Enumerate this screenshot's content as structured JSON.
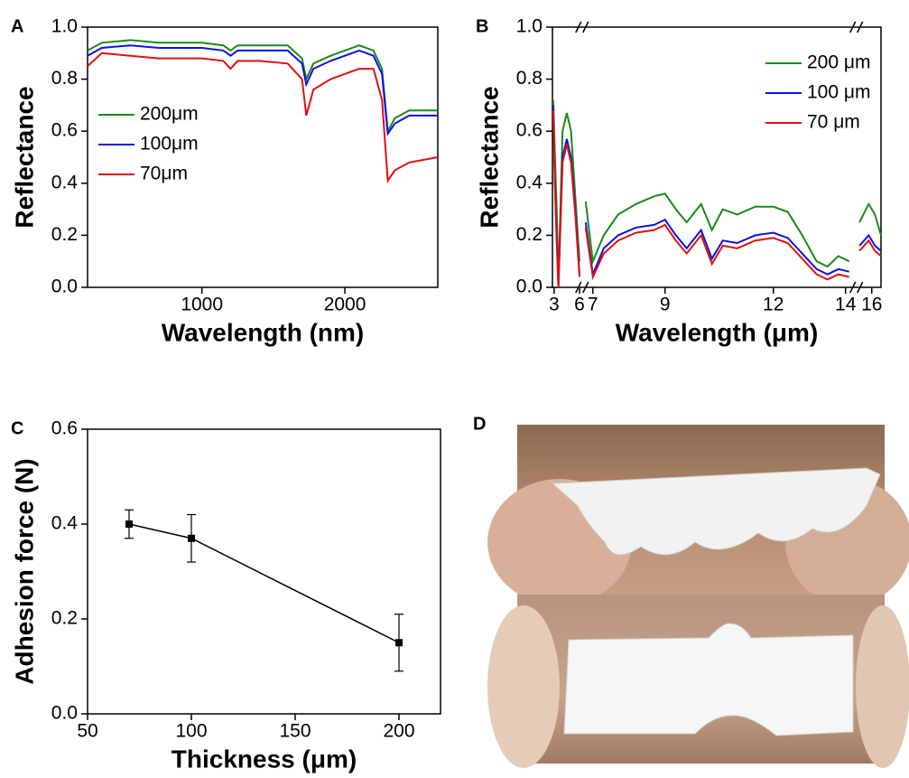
{
  "chart_data": [
    {
      "type": "line",
      "label": "A",
      "xlabel": "Wavelength (nm)",
      "ylabel": "Reflectance",
      "xlim": [
        200,
        2650
      ],
      "xticks": [
        1000,
        2000
      ],
      "ylim": [
        0,
        1.0
      ],
      "yticks": [
        {
          "value": 0,
          "label": "0.0"
        },
        0.2,
        0.4,
        0.6,
        0.8,
        {
          "value": 1,
          "label": "1.0"
        }
      ],
      "legend": "center left",
      "x": [
        200,
        300,
        500,
        700,
        850,
        1000,
        1150,
        1200,
        1250,
        1400,
        1600,
        1700,
        1730,
        1780,
        1900,
        2100,
        2200,
        2260,
        2300,
        2350,
        2450,
        2650
      ],
      "series": [
        {
          "name": "200μm",
          "color": "#1a8a1a",
          "values": [
            0.91,
            0.94,
            0.95,
            0.94,
            0.94,
            0.94,
            0.93,
            0.91,
            0.93,
            0.93,
            0.93,
            0.88,
            0.8,
            0.86,
            0.89,
            0.93,
            0.91,
            0.84,
            0.6,
            0.65,
            0.68,
            0.68
          ]
        },
        {
          "name": "100μm",
          "color": "#1010e0",
          "values": [
            0.89,
            0.92,
            0.93,
            0.92,
            0.92,
            0.92,
            0.91,
            0.89,
            0.91,
            0.91,
            0.91,
            0.86,
            0.78,
            0.84,
            0.87,
            0.91,
            0.89,
            0.82,
            0.59,
            0.63,
            0.66,
            0.66
          ]
        },
        {
          "name": "70μm",
          "color": "#e01010",
          "values": [
            0.85,
            0.9,
            0.89,
            0.88,
            0.88,
            0.88,
            0.87,
            0.84,
            0.87,
            0.87,
            0.86,
            0.8,
            0.66,
            0.76,
            0.8,
            0.84,
            0.84,
            0.72,
            0.41,
            0.45,
            0.48,
            0.5
          ]
        }
      ]
    },
    {
      "type": "line",
      "label": "B",
      "xlabel": "Wavelength (μm)",
      "ylabel": "Reflectance",
      "xlim": [
        [
          2.8,
          6.3
        ],
        [
          6.7,
          14.3
        ],
        [
          15.5,
          16.3
        ]
      ],
      "xticks": [
        3,
        6,
        7,
        9,
        12,
        14,
        16
      ],
      "ylim": [
        0,
        1.0
      ],
      "yticks": [
        {
          "value": 0,
          "label": "0.0"
        },
        0.2,
        0.4,
        0.6,
        0.8,
        {
          "value": 1,
          "label": "1.0"
        }
      ],
      "legend": "upper right",
      "x": [
        2.9,
        3.1,
        3.3,
        3.5,
        4.0,
        4.5,
        5.0,
        5.5,
        6.0,
        6.3,
        6.8,
        7.0,
        7.3,
        7.7,
        8.2,
        8.7,
        9.0,
        9.3,
        9.6,
        10.0,
        10.3,
        10.6,
        11.0,
        11.5,
        12.0,
        12.4,
        12.8,
        13.2,
        13.5,
        13.8,
        14.1,
        14.3,
        15.6,
        15.9,
        16.1,
        16.3
      ],
      "series": [
        {
          "name": "200 μm",
          "color": "#1a8a1a",
          "values": [
            0.72,
            0.5,
            0.3,
            0.02,
            0.6,
            0.67,
            0.6,
            0.35,
            0.1,
            null,
            0.33,
            0.1,
            0.2,
            0.28,
            0.32,
            0.35,
            0.36,
            0.3,
            0.25,
            0.32,
            0.22,
            0.3,
            0.28,
            0.31,
            0.31,
            0.29,
            0.2,
            0.1,
            0.08,
            0.12,
            0.1,
            null,
            0.25,
            0.32,
            0.28,
            0.2
          ]
        },
        {
          "name": "100 μm",
          "color": "#1010e0",
          "values": [
            0.7,
            0.4,
            0.2,
            0.0,
            0.5,
            0.57,
            0.5,
            0.3,
            0.05,
            null,
            0.25,
            0.05,
            0.15,
            0.2,
            0.23,
            0.24,
            0.26,
            0.2,
            0.15,
            0.22,
            0.11,
            0.18,
            0.17,
            0.2,
            0.21,
            0.19,
            0.13,
            0.07,
            0.05,
            0.07,
            0.06,
            null,
            0.16,
            0.2,
            0.16,
            0.14
          ]
        },
        {
          "name": "70 μm",
          "color": "#e01010",
          "values": [
            0.68,
            0.38,
            0.18,
            0.0,
            0.48,
            0.55,
            0.48,
            0.28,
            0.04,
            null,
            0.23,
            0.04,
            0.13,
            0.18,
            0.21,
            0.22,
            0.24,
            0.18,
            0.13,
            0.2,
            0.09,
            0.16,
            0.15,
            0.18,
            0.19,
            0.17,
            0.11,
            0.05,
            0.03,
            0.05,
            0.04,
            null,
            0.14,
            0.18,
            0.14,
            0.12
          ]
        }
      ]
    },
    {
      "type": "errorline",
      "label": "C",
      "xlabel": "Thickness (μm)",
      "ylabel": "Adhesion force (N)",
      "xlim": [
        50,
        220
      ],
      "xticks": [
        50,
        100,
        150,
        200
      ],
      "ylim": [
        0,
        0.6
      ],
      "yticks": [
        {
          "value": 0,
          "label": "0.0"
        },
        0.2,
        0.4,
        0.6
      ],
      "color": "#000000",
      "x": [
        70,
        100,
        200
      ],
      "values": [
        0.4,
        0.37,
        0.15
      ],
      "errors": [
        0.03,
        0.05,
        0.06
      ]
    }
  ],
  "photo_panel": {
    "label": "D"
  }
}
